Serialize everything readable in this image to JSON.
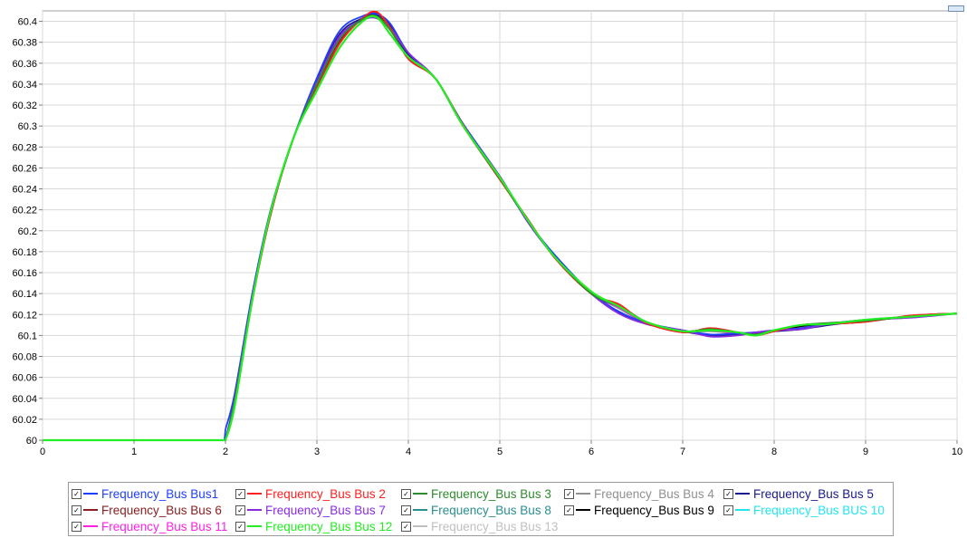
{
  "chart_data": {
    "type": "line",
    "title": "",
    "xlabel": "",
    "ylabel": "",
    "xlim": [
      0,
      10
    ],
    "ylim": [
      60,
      60.41
    ],
    "x_ticks": [
      "0",
      "1",
      "2",
      "3",
      "4",
      "5",
      "6",
      "7",
      "8",
      "9",
      "10"
    ],
    "y_ticks": [
      "60",
      "60.02",
      "60.04",
      "60.06",
      "60.08",
      "60.1",
      "60.12",
      "60.14",
      "60.16",
      "60.18",
      "60.2",
      "60.22",
      "60.24",
      "60.26",
      "60.28",
      "60.3",
      "60.32",
      "60.34",
      "60.36",
      "60.38",
      "60.4"
    ],
    "grid": true,
    "legend_position": "bottom",
    "x": [
      0,
      1,
      1.99,
      2.0,
      2.1,
      2.3,
      2.5,
      2.75,
      3.0,
      3.25,
      3.5,
      3.65,
      3.8,
      4.0,
      4.3,
      4.6,
      5.0,
      5.3,
      5.6,
      6.0,
      6.3,
      6.6,
      7.0,
      7.3,
      7.6,
      7.8,
      8.0,
      8.3,
      8.6,
      9.0,
      9.5,
      10.0
    ],
    "base_values": [
      60.0,
      60.0,
      60.0,
      60.0,
      60.04,
      60.14,
      60.22,
      60.29,
      60.34,
      60.385,
      60.402,
      60.403,
      60.392,
      60.368,
      60.345,
      60.3,
      60.25,
      60.21,
      60.175,
      60.14,
      60.125,
      60.112,
      60.104,
      60.103,
      60.102,
      60.102,
      60.104,
      60.108,
      60.111,
      60.114,
      60.118,
      60.121
    ],
    "series": [
      {
        "name": "Frequency_Bus Bus1",
        "color": "#1f3fff",
        "offsets": [
          0,
          0,
          0,
          0.01,
          0.004,
          0.003,
          0.002,
          0,
          0.006,
          0.006,
          0.003,
          0.004,
          0.006,
          0.002,
          0,
          0.002,
          0.002,
          0,
          0.002,
          0.001,
          -0.002,
          0,
          0.001,
          -0.002,
          0,
          0.001,
          0.001,
          -0.001,
          0,
          0.001,
          0,
          0
        ]
      },
      {
        "name": "Frequency_Bus Bus 2",
        "color": "#ff2020",
        "offsets": [
          0,
          0,
          0,
          0,
          -0.006,
          -0.004,
          -0.003,
          0,
          -0.004,
          -0.006,
          0.001,
          0.006,
          0.002,
          -0.004,
          0,
          0.001,
          -0.001,
          0.002,
          -0.001,
          0,
          0.005,
          0,
          -0.001,
          0.004,
          0.001,
          -0.002,
          0,
          0.002,
          0,
          -0.001,
          0.001,
          0
        ]
      },
      {
        "name": "Frequency_Bus Bus 3",
        "color": "#2e8b2e",
        "offsets": [
          0,
          0,
          0,
          0,
          -0.003,
          -0.002,
          -0.001,
          0,
          0,
          -0.002,
          0,
          0.002,
          0,
          -0.002,
          0,
          0,
          0,
          0.001,
          0,
          0,
          0.003,
          0.001,
          0,
          0.003,
          0.001,
          -0.001,
          0.001,
          0.002,
          0.001,
          0,
          0,
          0
        ]
      },
      {
        "name": "Frequency_Bus Bus 4",
        "color": "#909090",
        "offsets": [
          0,
          0,
          0,
          0,
          -0.002,
          -0.001,
          0,
          0,
          0.001,
          -0.001,
          0,
          0.001,
          0,
          -0.001,
          0,
          0,
          0,
          0,
          0,
          0,
          0.001,
          0,
          0,
          0.001,
          0,
          0,
          0,
          0,
          0,
          0,
          0,
          0
        ]
      },
      {
        "name": "Frequency_Bus Bus 5",
        "color": "#1a1a8c",
        "offsets": [
          0,
          0,
          0,
          0,
          0,
          0.001,
          0.001,
          0,
          0.003,
          0.003,
          0.001,
          0.002,
          0.004,
          0,
          0,
          0.001,
          0,
          0,
          0,
          0,
          -0.003,
          -0.001,
          0,
          -0.003,
          -0.001,
          0.001,
          0,
          -0.002,
          -0.001,
          0,
          0,
          0
        ]
      },
      {
        "name": "Frequency_Bus Bus 6",
        "color": "#8b2020",
        "offsets": [
          0,
          0,
          0,
          0,
          -0.005,
          -0.003,
          -0.002,
          0,
          -0.003,
          -0.005,
          0.001,
          0.005,
          0.001,
          -0.003,
          0,
          0,
          -0.001,
          0.001,
          0,
          0,
          0.004,
          0.001,
          -0.001,
          0.004,
          0.001,
          -0.002,
          0,
          0.002,
          0,
          -0.001,
          0.001,
          0
        ]
      },
      {
        "name": "Frequency_Bus Bus 7",
        "color": "#8a2be2",
        "offsets": [
          0,
          0,
          0,
          0,
          -0.001,
          0,
          0.001,
          0,
          0.002,
          0.001,
          -0.001,
          0,
          0.002,
          0.002,
          0,
          0,
          0.002,
          -0.001,
          0,
          0,
          -0.004,
          -0.001,
          0.001,
          -0.004,
          -0.002,
          0.001,
          0.001,
          -0.002,
          0,
          0.001,
          -0.001,
          0
        ]
      },
      {
        "name": "Frequency_Bus Bus 8",
        "color": "#2a8f8f",
        "offsets": [
          0,
          0,
          0,
          0,
          -0.002,
          -0.001,
          0,
          0,
          0.001,
          0,
          0,
          0.001,
          0.001,
          0,
          0,
          0,
          0,
          0,
          0,
          0,
          0.002,
          0,
          0,
          0.002,
          0,
          -0.001,
          0,
          0.001,
          0,
          0,
          0,
          0
        ]
      },
      {
        "name": "Frequency_Bus Bus 9",
        "color": "#000000",
        "offsets": [
          0,
          0,
          0,
          0,
          -0.003,
          -0.002,
          -0.001,
          0,
          0,
          -0.003,
          0,
          0.003,
          0.001,
          -0.002,
          0,
          0,
          0,
          0.001,
          0,
          0,
          0.003,
          0.001,
          0,
          0.003,
          0.001,
          -0.001,
          0,
          0.001,
          0,
          0,
          0,
          0
        ]
      },
      {
        "name": "Frequency_Bus BUS 10",
        "color": "#22e6ee",
        "offsets": [
          0,
          0,
          0,
          0,
          -0.002,
          -0.001,
          0,
          0,
          0.001,
          0,
          0,
          0.001,
          0,
          -0.001,
          0,
          0,
          0,
          0,
          0,
          0,
          0.002,
          0,
          0,
          0.002,
          0,
          0,
          0,
          0.001,
          0,
          0,
          0,
          0
        ]
      },
      {
        "name": "Frequency_Bus Bus 11",
        "color": "#ff22e6",
        "offsets": [
          0,
          0,
          0,
          0,
          -0.002,
          -0.001,
          0,
          0,
          0.001,
          0,
          0,
          0.002,
          0.001,
          -0.001,
          0,
          0,
          0,
          0,
          0,
          0,
          0.002,
          0,
          0,
          0.002,
          0,
          0,
          0,
          0.001,
          0,
          0,
          0,
          0
        ]
      },
      {
        "name": "Frequency_Bus Bus 12",
        "color": "#22ee22",
        "offsets": [
          0,
          0,
          0,
          0,
          -0.008,
          -0.003,
          0,
          0,
          -0.006,
          -0.01,
          -0.002,
          0.001,
          -0.004,
          -0.002,
          0,
          0,
          0.001,
          0.001,
          0,
          0.002,
          0.003,
          0.001,
          0,
          0.002,
          0.001,
          -0.002,
          0.001,
          0.002,
          0,
          0.001,
          0,
          0
        ]
      },
      {
        "name": "Frequency_Bus Bus 13",
        "color": "#c0c0c0",
        "offsets": [
          0,
          0,
          0,
          0,
          -0.002,
          -0.001,
          0,
          0,
          0,
          -0.001,
          0,
          0.001,
          0,
          -0.001,
          0,
          0,
          0,
          0,
          0,
          0,
          0.001,
          0,
          0,
          0.001,
          0,
          0,
          0,
          0,
          0,
          0,
          0,
          0
        ]
      }
    ]
  },
  "legend": {
    "check_glyph": "✓"
  }
}
